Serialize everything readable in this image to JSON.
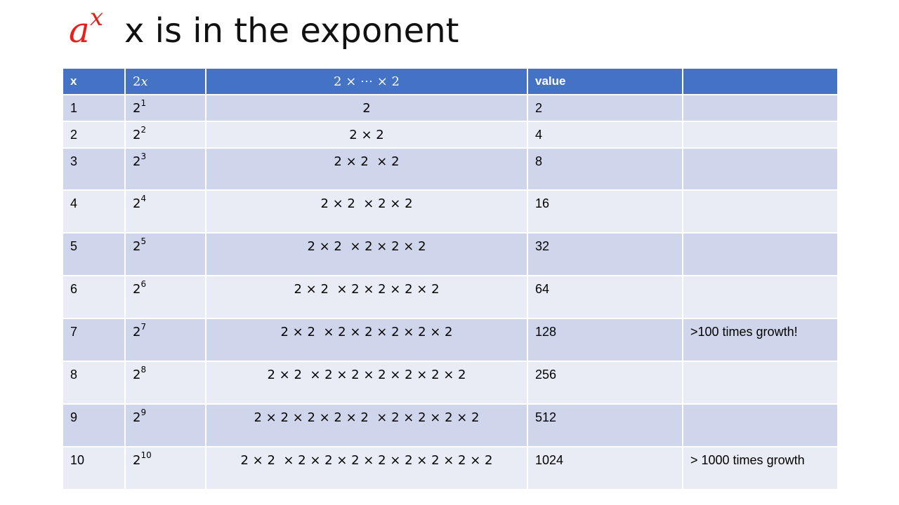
{
  "title": {
    "math_base": "a",
    "math_exp": "x",
    "text": "x is in the exponent"
  },
  "table": {
    "headers": {
      "x": "x",
      "power_base": "2",
      "power_exp": "x",
      "product": "2 × ⋯ × 2",
      "value": "value",
      "note": ""
    },
    "rows": [
      {
        "x": "1",
        "base": "2",
        "exp": "1",
        "product": "2",
        "value": "2",
        "note": ""
      },
      {
        "x": "2",
        "base": "2",
        "exp": "2",
        "product": "2 × 2",
        "value": "4",
        "note": ""
      },
      {
        "x": "3",
        "base": "2",
        "exp": "3",
        "product": "2 × 2  × 2",
        "value": "8",
        "note": ""
      },
      {
        "x": "4",
        "base": "2",
        "exp": "4",
        "product": "2 × 2  × 2 × 2",
        "value": "16",
        "note": ""
      },
      {
        "x": "5",
        "base": "2",
        "exp": "5",
        "product": "2 × 2  × 2 × 2 × 2",
        "value": "32",
        "note": ""
      },
      {
        "x": "6",
        "base": "2",
        "exp": "6",
        "product": "2 × 2  × 2 × 2 × 2 × 2",
        "value": "64",
        "note": ""
      },
      {
        "x": "7",
        "base": "2",
        "exp": "7",
        "product": "2 × 2  × 2 × 2 × 2 × 2 × 2",
        "value": "128",
        "note": ">100 times growth!"
      },
      {
        "x": "8",
        "base": "2",
        "exp": "8",
        "product": "2 × 2  × 2 × 2 × 2 × 2 × 2 × 2",
        "value": "256",
        "note": ""
      },
      {
        "x": "9",
        "base": "2",
        "exp": "9",
        "product": "2 × 2 × 2 × 2 × 2  × 2 × 2 × 2 × 2",
        "value": "512",
        "note": ""
      },
      {
        "x": "10",
        "base": "2",
        "exp": "10",
        "product": "2 × 2  × 2 × 2 × 2 × 2 × 2 × 2 × 2 × 2",
        "value": "1024",
        "note": "> 1000 times growth"
      }
    ]
  },
  "colors": {
    "header_bg": "#4472c4",
    "row_odd": "#cfd5ea",
    "row_even": "#e9ebf5",
    "title_math": "#e8201c"
  }
}
